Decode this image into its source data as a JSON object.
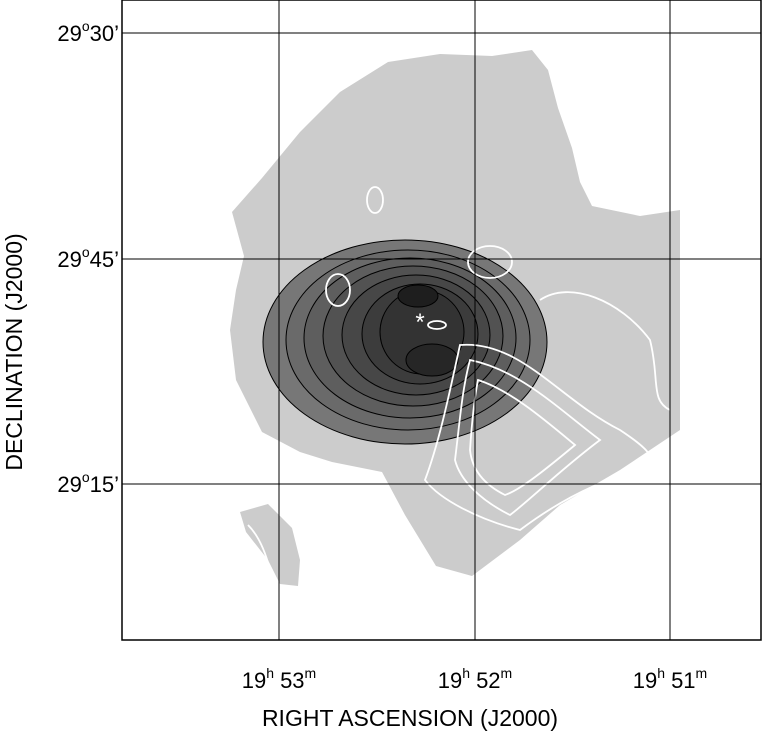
{
  "figure": {
    "x_axis_label": "RIGHT ASCENSION (J2000)",
    "y_axis_label": "DECLINATION (J2000)",
    "ra_ticks": [
      {
        "h": "19",
        "h_unit": "h",
        "m": "53",
        "m_unit": "m"
      },
      {
        "h": "19",
        "h_unit": "h",
        "m": "52",
        "m_unit": "m"
      },
      {
        "h": "19",
        "h_unit": "h",
        "m": "51",
        "m_unit": "m"
      }
    ],
    "dec_ticks": [
      {
        "deg": "29",
        "deg_unit": "o",
        "min": "30’"
      },
      {
        "deg": "29",
        "deg_unit": "o",
        "min": "45’"
      },
      {
        "deg": "29",
        "deg_unit": "o",
        "min": "15’"
      }
    ],
    "marker": "*"
  }
}
